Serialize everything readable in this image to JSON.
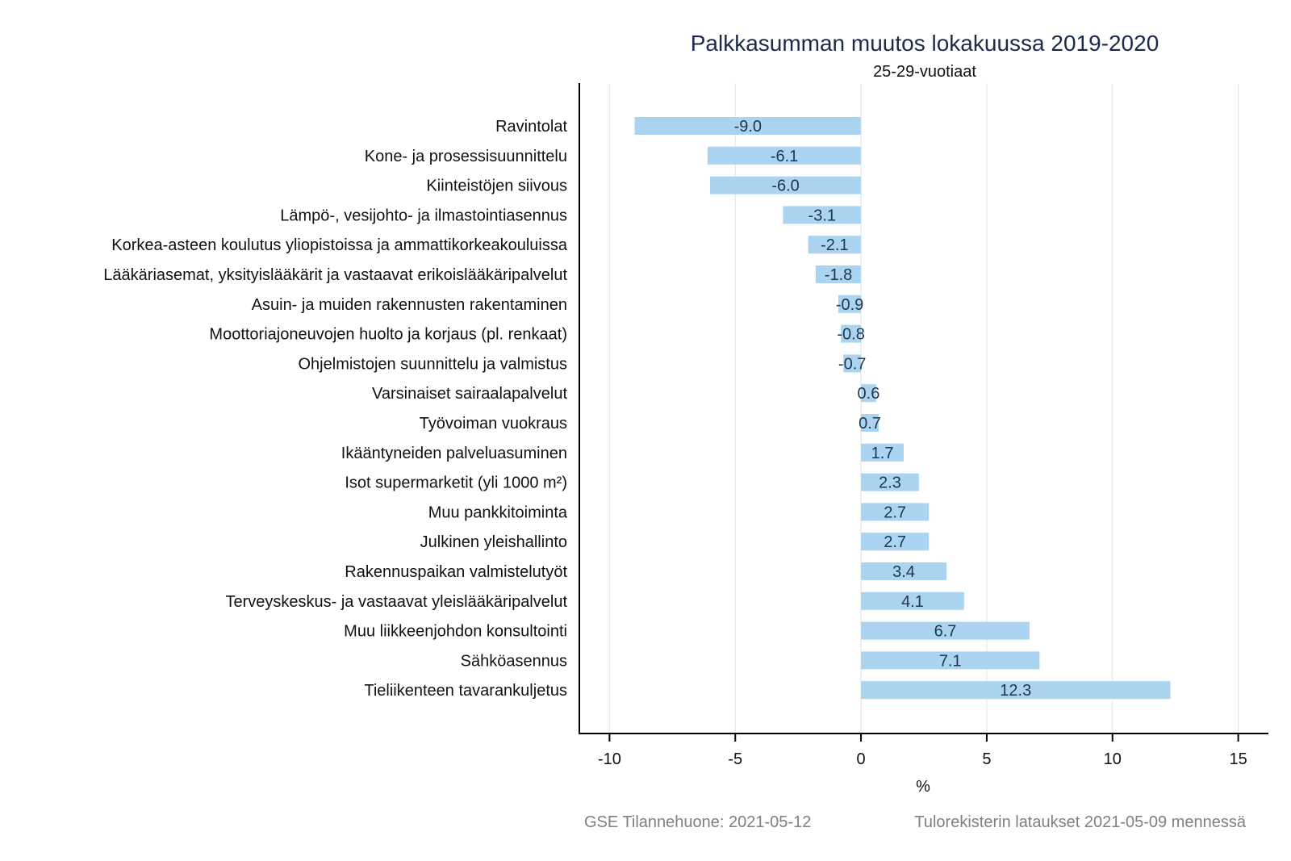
{
  "chart_data": {
    "type": "bar",
    "orientation": "horizontal",
    "title": "Palkkasumman muutos lokakuussa 2019-2020",
    "subtitle": "25-29-vuotiaat",
    "xlabel": "%",
    "ylabel": "",
    "xlim": [
      -11.2,
      16.2
    ],
    "xticks": [
      -10,
      -5,
      0,
      5,
      10,
      15
    ],
    "grid": true,
    "bar_color": "#aad4f0",
    "categories": [
      "Ravintolat",
      "Kone- ja prosessisuunnittelu",
      "Kiinteistöjen siivous",
      "Lämpö-, vesijohto- ja ilmastointiasennus",
      "Korkea-asteen koulutus yliopistoissa ja ammattikorkeakouluissa",
      "Lääkäriasemat, yksityislääkärit ja vastaavat erikoislääkäripalvelut",
      "Asuin- ja muiden rakennusten rakentaminen",
      "Moottoriajoneuvojen huolto ja korjaus (pl. renkaat)",
      "Ohjelmistojen suunnittelu ja valmistus",
      "Varsinaiset sairaalapalvelut",
      "Työvoiman vuokraus",
      "Ikääntyneiden palveluasuminen",
      "Isot supermarketit (yli 1000 m²)",
      "Muu pankkitoiminta",
      "Julkinen yleishallinto",
      "Rakennuspaikan valmistelutyöt",
      "Terveyskeskus- ja vastaavat yleislääkäripalvelut",
      "Muu liikkeenjohdon konsultointi",
      "Sähköasennus",
      "Tieliikenteen tavarankuljetus"
    ],
    "values": [
      -9.0,
      -6.1,
      -6.0,
      -3.1,
      -2.1,
      -1.8,
      -0.9,
      -0.8,
      -0.7,
      0.6,
      0.7,
      1.7,
      2.3,
      2.7,
      2.7,
      3.4,
      4.1,
      6.7,
      7.1,
      12.3
    ],
    "value_labels": [
      "-9.0",
      "-6.1",
      "-6.0",
      "-3.1",
      "-2.1",
      "-1.8",
      "-0.9",
      "-0.8",
      "-0.7",
      "0.6",
      "0.7",
      "1.7",
      "2.3",
      "2.7",
      "2.7",
      "3.4",
      "4.1",
      "6.7",
      "7.1",
      "12.3"
    ]
  },
  "footer": {
    "source": "GSE Tilannehuone: 2021-05-12",
    "note": "Tulorekisterin lataukset 2021-05-09 mennessä"
  }
}
